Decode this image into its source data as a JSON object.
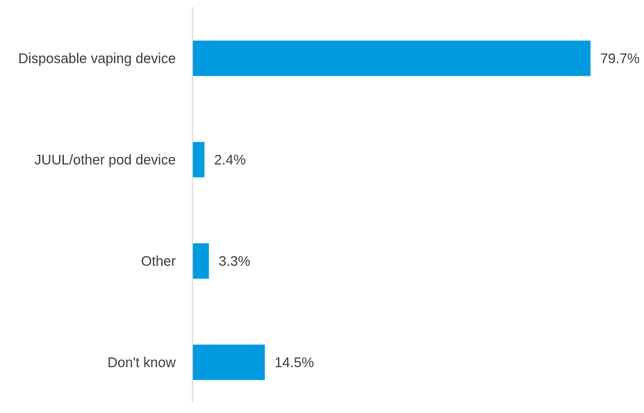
{
  "chart_data": {
    "type": "bar",
    "orientation": "horizontal",
    "categories": [
      "Disposable vaping device",
      "JUUL/other pod device",
      "Other",
      "Don't know"
    ],
    "values": [
      79.7,
      2.4,
      3.3,
      14.5
    ],
    "value_labels": [
      "79.7%",
      "2.4%",
      "3.3%",
      "14.5%"
    ],
    "title": "",
    "xlabel": "",
    "ylabel": "",
    "xlim": [
      0,
      80
    ],
    "grid": false,
    "legend": "none",
    "bar_color": "#009ADE",
    "axis_color": "#D9D9D9"
  }
}
